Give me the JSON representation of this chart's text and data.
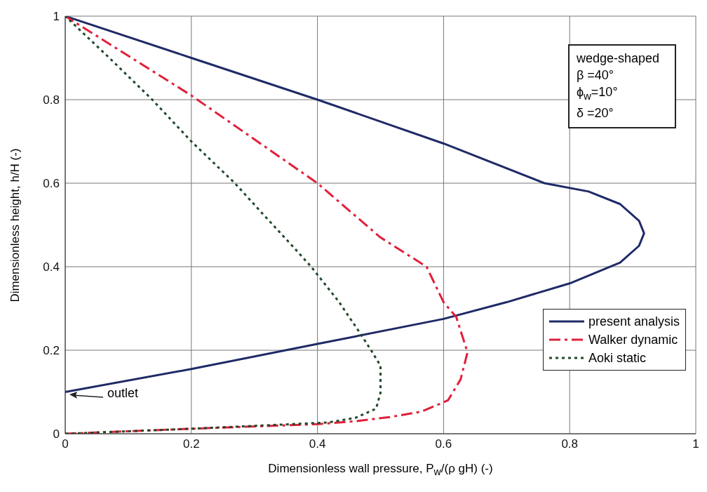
{
  "chart_data": {
    "type": "line",
    "xlabel": "Dimensionless wall pressure,  P$_{w}$/(ρ gH)  (-)",
    "ylabel": "Dimensionless height,  h/H  (-)",
    "xlim": [
      0,
      1
    ],
    "ylim": [
      0,
      1
    ],
    "xticks": [
      0,
      0.2,
      0.4,
      0.6,
      0.8,
      1
    ],
    "yticks": [
      0,
      0.2,
      0.4,
      0.6,
      0.8,
      1
    ],
    "grid": true,
    "legend": "bottom right",
    "marker": "none",
    "series": [
      {
        "name": "present analysis",
        "color": "#1f2a66",
        "line_style": "solid",
        "x": [
          0,
          0.2,
          0.4,
          0.6,
          0.7,
          0.8,
          0.88,
          0.91,
          0.918,
          0.91,
          0.88,
          0.83,
          0.76,
          0.6,
          0.4,
          0.2,
          0
        ],
        "values": [
          0.1,
          0.155,
          0.215,
          0.275,
          0.315,
          0.36,
          0.41,
          0.45,
          0.48,
          0.51,
          0.55,
          0.58,
          0.6,
          0.695,
          0.8,
          0.9,
          1
        ]
      },
      {
        "name": "Walker dynamic",
        "color": "#e0203a",
        "line_style": "dashed",
        "x": [
          0,
          0.2,
          0.4,
          0.46,
          0.515,
          0.565,
          0.607,
          0.627,
          0.638,
          0.62,
          0.6,
          0.573,
          0.5,
          0.4,
          0.3,
          0.2,
          0.1,
          0
        ],
        "values": [
          0,
          0.012,
          0.023,
          0.03,
          0.04,
          0.053,
          0.08,
          0.13,
          0.195,
          0.28,
          0.315,
          0.4,
          0.47,
          0.6,
          0.705,
          0.81,
          0.905,
          1
        ]
      },
      {
        "name": "Aoki static",
        "color": "#1f4a2a",
        "line_style": "dotted",
        "x": [
          0,
          0.2,
          0.417,
          0.46,
          0.493,
          0.5,
          0.5,
          0.485,
          0.468,
          0.434,
          0.39,
          0.36,
          0.313,
          0.269,
          0.2,
          0.138,
          0.07,
          0
        ],
        "values": [
          0,
          0.012,
          0.027,
          0.038,
          0.06,
          0.098,
          0.163,
          0.2,
          0.24,
          0.316,
          0.4,
          0.45,
          0.527,
          0.6,
          0.7,
          0.8,
          0.9,
          1
        ]
      }
    ],
    "annotations": [
      "outlet",
      "wedge-shaped",
      "β =40°",
      "ϕ$_{w}$=10°",
      "δ =20°"
    ]
  }
}
